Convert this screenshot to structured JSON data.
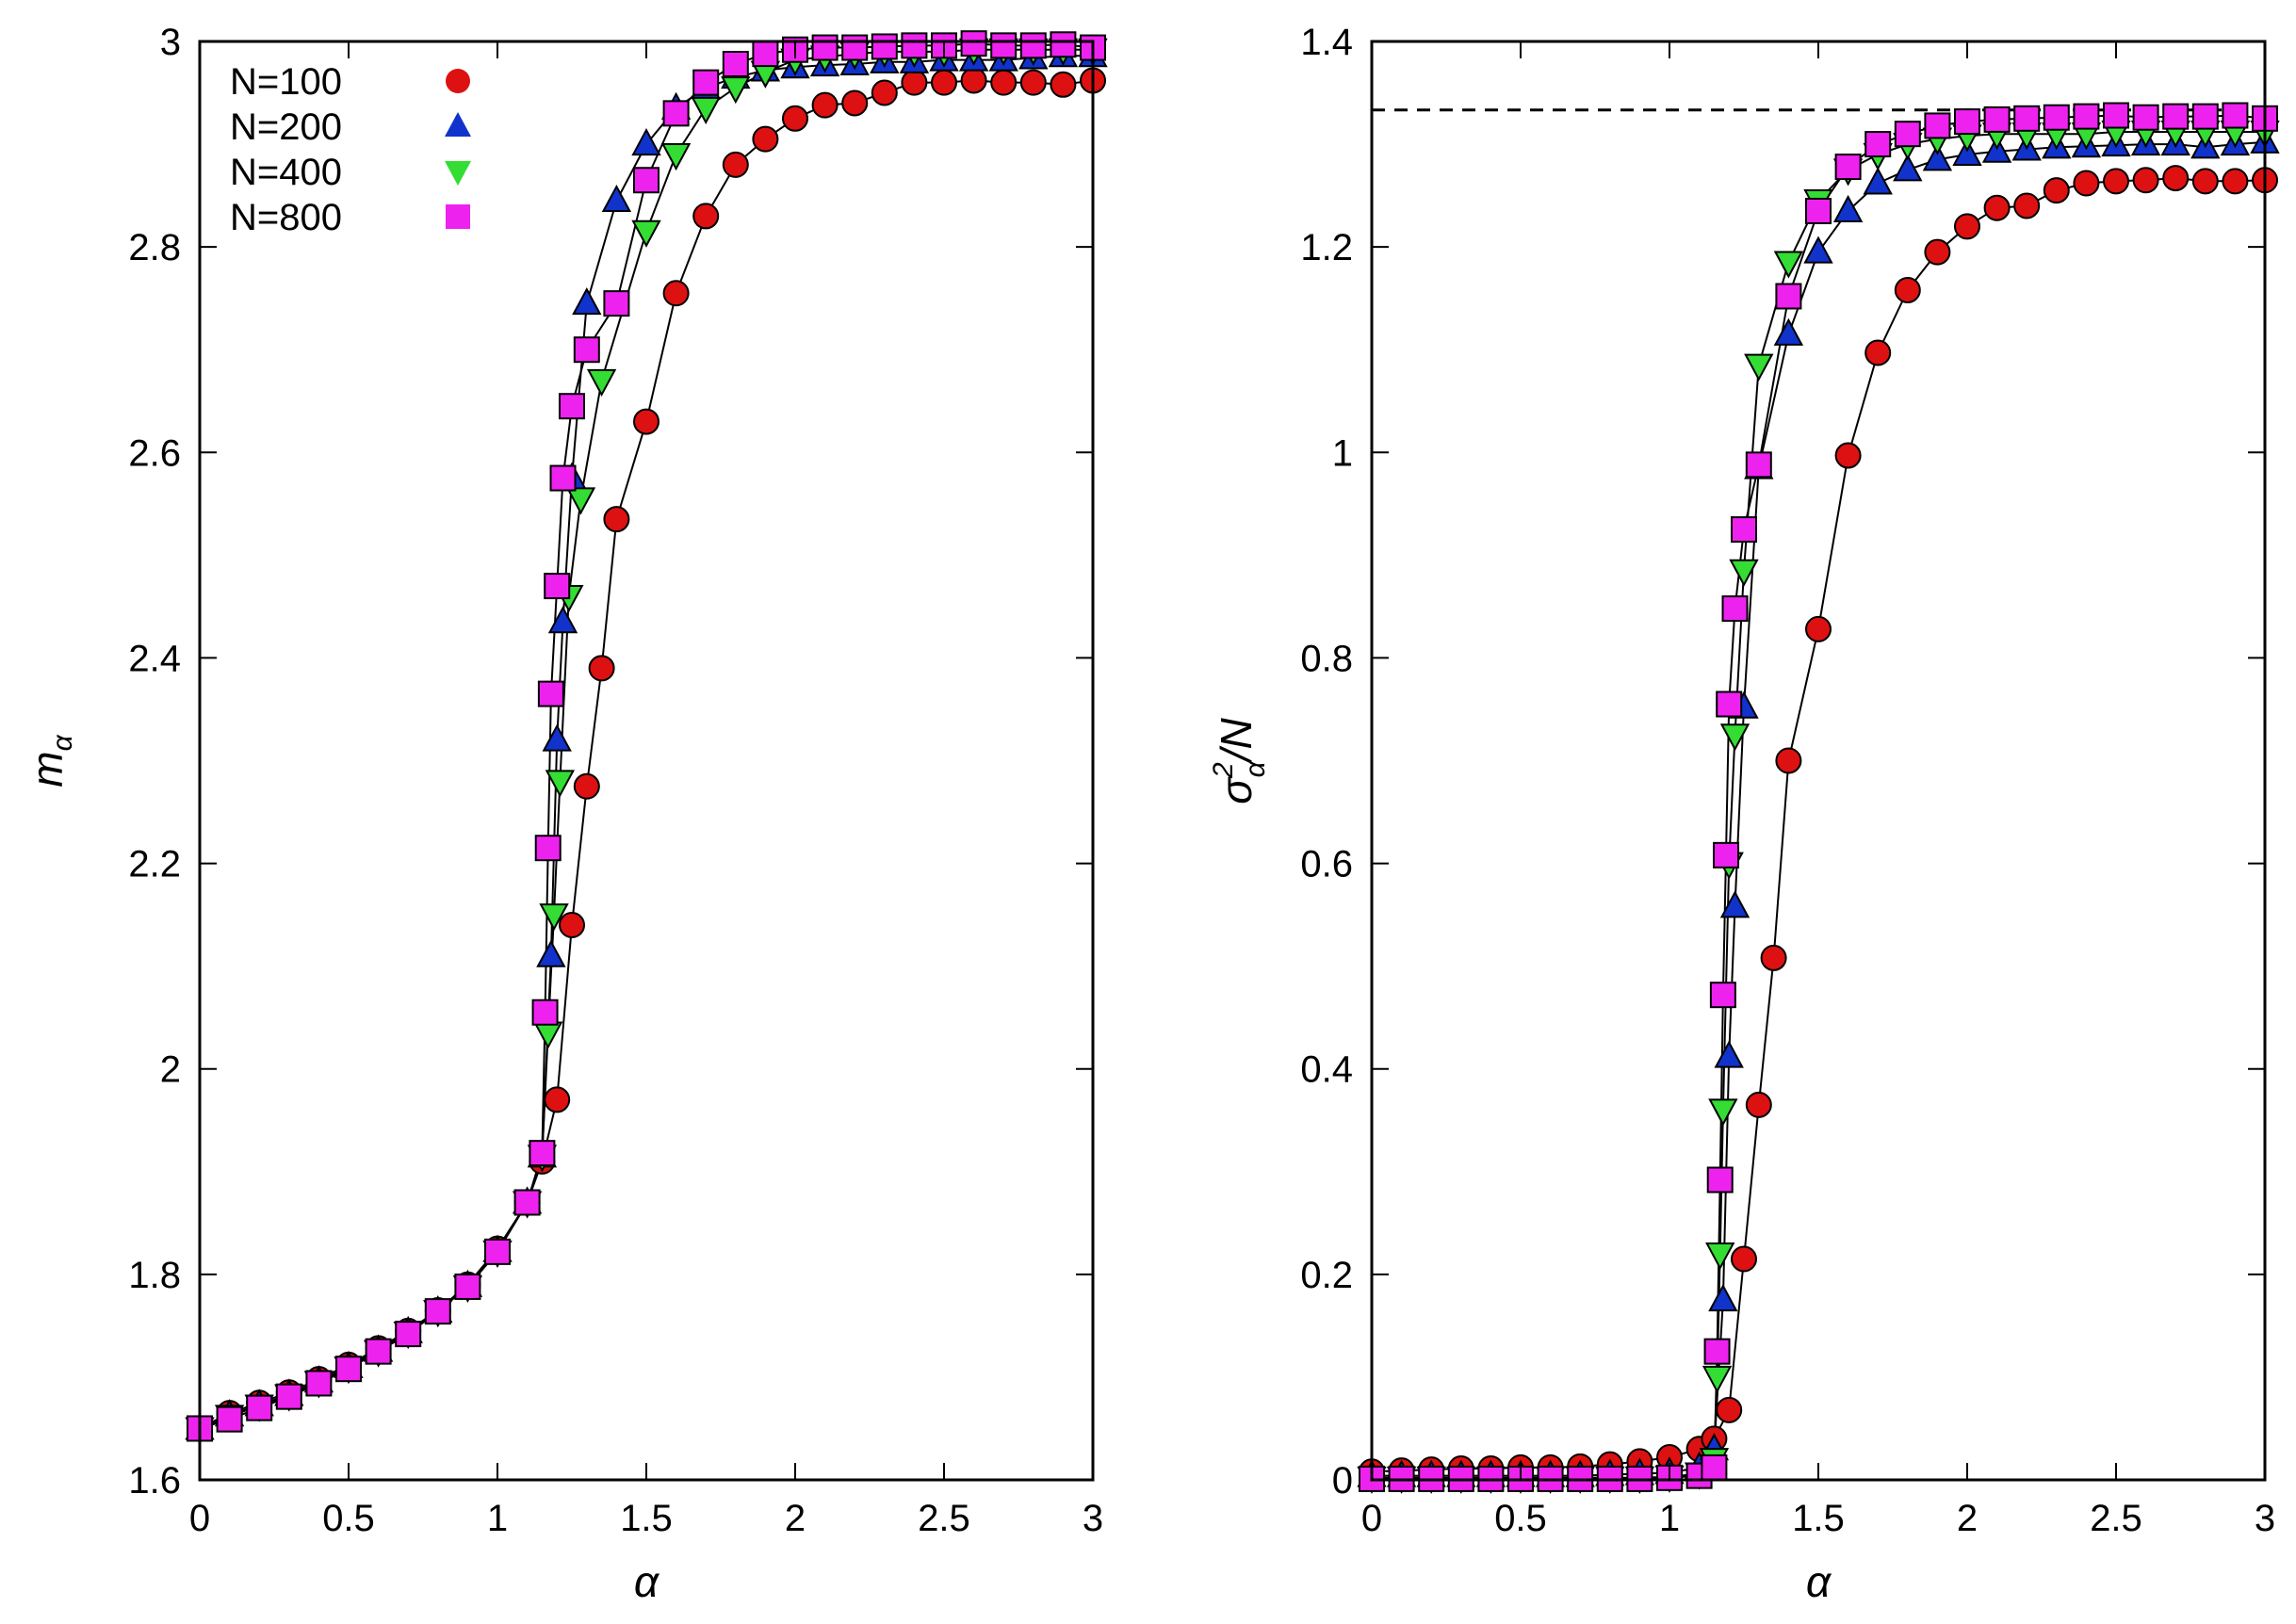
{
  "colors": {
    "N100": "#dd1111",
    "N200": "#1133cc",
    "N400": "#33dd33",
    "N800": "#ee22ee",
    "axis": "#000000",
    "line": "#000000"
  },
  "legend": {
    "entries": [
      {
        "label": "N=100",
        "marker": "circle"
      },
      {
        "label": "N=200",
        "marker": "triangle-up"
      },
      {
        "label": "N=400",
        "marker": "triangle-down"
      },
      {
        "label": "N=800",
        "marker": "square"
      }
    ]
  },
  "chart_data": [
    {
      "type": "line",
      "xlabel": "α",
      "ylabel_main": "m",
      "ylabel_sub": "α",
      "xlim": [
        0,
        3
      ],
      "ylim": [
        1.6,
        3.0
      ],
      "xticks": [
        0,
        0.5,
        1,
        1.5,
        2,
        2.5,
        3
      ],
      "xtick_labels": [
        "0",
        "0.5",
        "1",
        "1.5",
        "2",
        "2.5",
        "3"
      ],
      "yticks": [
        1.6,
        1.8,
        2.0,
        2.2,
        2.4,
        2.6,
        2.8,
        3.0
      ],
      "ytick_labels": [
        "1.6",
        "1.8",
        "2",
        "2.2",
        "2.4",
        "2.6",
        "2.8",
        "3"
      ],
      "legend_position": "top-left",
      "series": [
        {
          "name": "N=100",
          "marker": "circle",
          "color": "#dd1111",
          "x": [
            0,
            0.1,
            0.2,
            0.3,
            0.4,
            0.5,
            0.6,
            0.7,
            0.8,
            0.9,
            1.0,
            1.1,
            1.15,
            1.2,
            1.25,
            1.3,
            1.35,
            1.4,
            1.5,
            1.6,
            1.7,
            1.8,
            1.9,
            2.0,
            2.1,
            2.2,
            2.3,
            2.4,
            2.5,
            2.6,
            2.7,
            2.8,
            2.9,
            3.0
          ],
          "y": [
            1.65,
            1.665,
            1.675,
            1.685,
            1.698,
            1.712,
            1.728,
            1.745,
            1.765,
            1.79,
            1.825,
            1.87,
            1.91,
            1.97,
            2.14,
            2.275,
            2.39,
            2.535,
            2.63,
            2.755,
            2.83,
            2.88,
            2.905,
            2.925,
            2.938,
            2.94,
            2.95,
            2.96,
            2.96,
            2.962,
            2.96,
            2.96,
            2.958,
            2.962
          ]
        },
        {
          "name": "N=200",
          "marker": "triangle-up",
          "color": "#1133cc",
          "x": [
            0,
            0.1,
            0.2,
            0.3,
            0.4,
            0.5,
            0.6,
            0.7,
            0.8,
            0.9,
            1.0,
            1.1,
            1.15,
            1.18,
            1.2,
            1.22,
            1.25,
            1.3,
            1.4,
            1.5,
            1.6,
            1.7,
            1.8,
            1.9,
            2.0,
            2.1,
            2.2,
            2.3,
            2.4,
            2.5,
            2.6,
            2.7,
            2.8,
            2.9,
            3.0
          ],
          "y": [
            1.65,
            1.663,
            1.673,
            1.683,
            1.696,
            1.71,
            1.726,
            1.744,
            1.764,
            1.789,
            1.823,
            1.87,
            1.915,
            2.11,
            2.32,
            2.435,
            2.575,
            2.745,
            2.845,
            2.9,
            2.935,
            2.955,
            2.965,
            2.972,
            2.975,
            2.977,
            2.978,
            2.98,
            2.98,
            2.982,
            2.982,
            2.982,
            2.984,
            2.986,
            2.986
          ]
        },
        {
          "name": "N=400",
          "marker": "triangle-down",
          "color": "#33dd33",
          "x": [
            0,
            0.1,
            0.2,
            0.3,
            0.4,
            0.5,
            0.6,
            0.7,
            0.8,
            0.9,
            1.0,
            1.1,
            1.15,
            1.17,
            1.19,
            1.21,
            1.24,
            1.28,
            1.35,
            1.5,
            1.6,
            1.7,
            1.8,
            1.9,
            2.0,
            2.1,
            2.2,
            2.3,
            2.4,
            2.5,
            2.6,
            2.7,
            2.8,
            2.9,
            3.0
          ],
          "y": [
            1.65,
            1.662,
            1.672,
            1.682,
            1.695,
            1.709,
            1.725,
            1.743,
            1.764,
            1.788,
            1.822,
            1.87,
            1.915,
            2.035,
            2.15,
            2.28,
            2.46,
            2.555,
            2.67,
            2.815,
            2.89,
            2.935,
            2.955,
            2.97,
            2.982,
            2.985,
            2.988,
            2.99,
            2.99,
            2.99,
            2.992,
            2.992,
            2.992,
            2.992,
            2.992
          ]
        },
        {
          "name": "N=800",
          "marker": "square",
          "color": "#ee22ee",
          "x": [
            0,
            0.1,
            0.2,
            0.3,
            0.4,
            0.5,
            0.6,
            0.7,
            0.8,
            0.9,
            1.0,
            1.1,
            1.15,
            1.16,
            1.17,
            1.18,
            1.2,
            1.22,
            1.25,
            1.3,
            1.4,
            1.5,
            1.6,
            1.7,
            1.8,
            1.9,
            2.0,
            2.1,
            2.2,
            2.3,
            2.4,
            2.5,
            2.6,
            2.7,
            2.8,
            2.9,
            3.0
          ],
          "y": [
            1.65,
            1.659,
            1.67,
            1.681,
            1.694,
            1.708,
            1.725,
            1.742,
            1.764,
            1.788,
            1.822,
            1.87,
            1.918,
            2.055,
            2.215,
            2.365,
            2.47,
            2.575,
            2.645,
            2.7,
            2.745,
            2.865,
            2.93,
            2.96,
            2.978,
            2.988,
            2.992,
            2.994,
            2.994,
            2.995,
            2.996,
            2.996,
            2.998,
            2.996,
            2.996,
            2.997,
            2.994
          ]
        }
      ]
    },
    {
      "type": "line",
      "xlabel": "α",
      "ylabel_main": "σ",
      "ylabel_sup": "2",
      "ylabel_sub": "α",
      "ylabel_tail": "/N",
      "xlim": [
        0,
        3
      ],
      "ylim": [
        0,
        1.4
      ],
      "xticks": [
        0,
        0.5,
        1,
        1.5,
        2,
        2.5,
        3
      ],
      "xtick_labels": [
        "0",
        "0.5",
        "1",
        "1.5",
        "2",
        "2.5",
        "3"
      ],
      "yticks": [
        0,
        0.2,
        0.4,
        0.6,
        0.8,
        1.0,
        1.2,
        1.4
      ],
      "ytick_labels": [
        "0",
        "0.2",
        "0.4",
        "0.6",
        "0.8",
        "1",
        "1.2",
        "1.4"
      ],
      "reference_line": {
        "y": 1.3333,
        "style": "dashed"
      },
      "series": [
        {
          "name": "N=100",
          "marker": "circle",
          "color": "#dd1111",
          "x": [
            0,
            0.1,
            0.2,
            0.3,
            0.4,
            0.5,
            0.6,
            0.7,
            0.8,
            0.9,
            1.0,
            1.1,
            1.15,
            1.2,
            1.25,
            1.3,
            1.35,
            1.4,
            1.5,
            1.6,
            1.7,
            1.8,
            1.9,
            2.0,
            2.1,
            2.2,
            2.3,
            2.4,
            2.5,
            2.6,
            2.7,
            2.8,
            2.9,
            3.0
          ],
          "y": [
            0.008,
            0.009,
            0.01,
            0.011,
            0.011,
            0.012,
            0.012,
            0.013,
            0.015,
            0.018,
            0.022,
            0.03,
            0.04,
            0.068,
            0.215,
            0.365,
            0.508,
            0.7,
            0.828,
            0.997,
            1.097,
            1.158,
            1.195,
            1.22,
            1.238,
            1.24,
            1.255,
            1.262,
            1.264,
            1.265,
            1.267,
            1.264,
            1.264,
            1.265
          ]
        },
        {
          "name": "N=200",
          "marker": "triangle-up",
          "color": "#1133cc",
          "x": [
            0,
            0.1,
            0.2,
            0.3,
            0.4,
            0.5,
            0.6,
            0.7,
            0.8,
            0.9,
            1.0,
            1.1,
            1.15,
            1.18,
            1.2,
            1.22,
            1.25,
            1.3,
            1.4,
            1.5,
            1.6,
            1.7,
            1.8,
            1.9,
            2.0,
            2.1,
            2.2,
            2.3,
            2.4,
            2.5,
            2.6,
            2.7,
            2.8,
            2.9,
            3.0
          ],
          "y": [
            0.004,
            0.004,
            0.004,
            0.004,
            0.004,
            0.004,
            0.004,
            0.004,
            0.005,
            0.006,
            0.007,
            0.012,
            0.03,
            0.175,
            0.412,
            0.558,
            0.752,
            0.985,
            1.115,
            1.195,
            1.235,
            1.262,
            1.275,
            1.285,
            1.29,
            1.293,
            1.295,
            1.297,
            1.298,
            1.299,
            1.3,
            1.3,
            1.297,
            1.3,
            1.302
          ]
        },
        {
          "name": "N=400",
          "marker": "triangle-down",
          "color": "#33dd33",
          "x": [
            0,
            0.1,
            0.2,
            0.3,
            0.4,
            0.5,
            0.6,
            0.7,
            0.8,
            0.9,
            1.0,
            1.1,
            1.15,
            1.16,
            1.17,
            1.18,
            1.2,
            1.22,
            1.25,
            1.3,
            1.4,
            1.5,
            1.6,
            1.7,
            1.8,
            1.9,
            2.0,
            2.1,
            2.2,
            2.3,
            2.4,
            2.5,
            2.6,
            2.7,
            2.8,
            2.9,
            3.0
          ],
          "y": [
            0.002,
            0.002,
            0.002,
            0.002,
            0.002,
            0.002,
            0.002,
            0.002,
            0.002,
            0.002,
            0.003,
            0.006,
            0.02,
            0.1,
            0.22,
            0.36,
            0.6,
            0.725,
            0.885,
            1.085,
            1.185,
            1.245,
            1.275,
            1.29,
            1.3,
            1.305,
            1.308,
            1.31,
            1.31,
            1.31,
            1.31,
            1.312,
            1.312,
            1.312,
            1.312,
            1.312,
            1.312
          ]
        },
        {
          "name": "N=800",
          "marker": "square",
          "color": "#ee22ee",
          "x": [
            0,
            0.1,
            0.2,
            0.3,
            0.4,
            0.5,
            0.6,
            0.7,
            0.8,
            0.9,
            1.0,
            1.1,
            1.15,
            1.16,
            1.17,
            1.18,
            1.19,
            1.2,
            1.22,
            1.25,
            1.3,
            1.4,
            1.5,
            1.6,
            1.7,
            1.8,
            1.9,
            2.0,
            2.1,
            2.2,
            2.3,
            2.4,
            2.5,
            2.6,
            2.7,
            2.8,
            2.9,
            3.0
          ],
          "y": [
            0.001,
            0.001,
            0.001,
            0.001,
            0.001,
            0.001,
            0.001,
            0.001,
            0.001,
            0.001,
            0.002,
            0.004,
            0.012,
            0.125,
            0.292,
            0.472,
            0.608,
            0.755,
            0.848,
            0.925,
            0.988,
            1.152,
            1.235,
            1.278,
            1.3,
            1.31,
            1.318,
            1.322,
            1.324,
            1.325,
            1.326,
            1.327,
            1.328,
            1.326,
            1.327,
            1.327,
            1.328,
            1.325
          ]
        }
      ]
    }
  ]
}
